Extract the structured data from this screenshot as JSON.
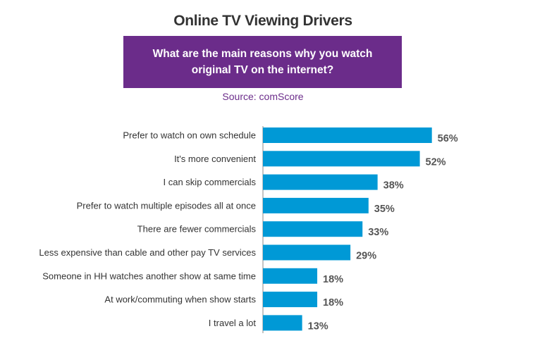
{
  "chart_data": {
    "type": "bar",
    "orientation": "horizontal",
    "title": "Online TV Viewing Drivers",
    "subtitle": "What are the main reasons why you watch original TV on the internet?",
    "source": "Source: comScore",
    "categories": [
      "Prefer to watch on own schedule",
      "It's more convenient",
      "I can skip commercials",
      "Prefer to watch multiple episodes all at once",
      "There are fewer commercials",
      "Less expensive than cable and other pay TV services",
      "Someone in HH watches another show at same time",
      "At work/commuting when show starts",
      "I travel a lot"
    ],
    "values": [
      56,
      52,
      38,
      35,
      33,
      29,
      18,
      18,
      13
    ],
    "value_labels": [
      "56%",
      "52%",
      "38%",
      "35%",
      "33%",
      "29%",
      "18%",
      "18%",
      "13%"
    ],
    "unit": "%",
    "xlim": [
      0,
      100
    ],
    "grid": false,
    "legend": "none",
    "bar_color": "#0099d6"
  }
}
